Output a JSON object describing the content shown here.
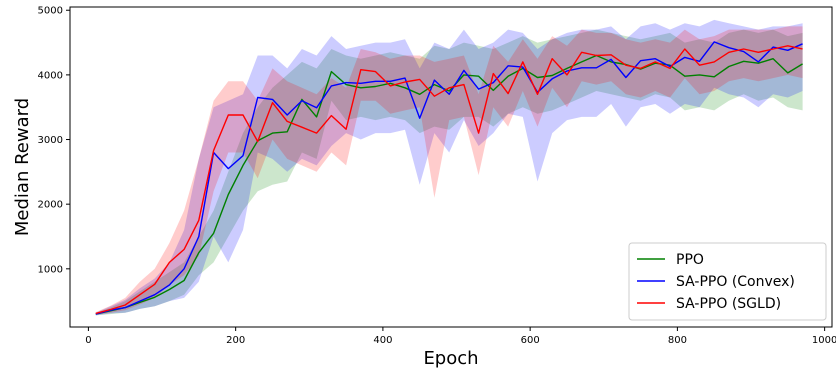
{
  "chart_data": {
    "type": "line",
    "title": "",
    "xlabel": "Epoch",
    "ylabel": "Median Reward",
    "xlim": [
      -25,
      1010
    ],
    "ylim": [
      100,
      5050
    ],
    "xticks": [
      0,
      200,
      400,
      600,
      800,
      1000
    ],
    "yticks": [
      1000,
      2000,
      3000,
      4000,
      5000
    ],
    "grid": false,
    "legend_position": "bottom-right",
    "x": [
      10,
      30,
      50,
      70,
      90,
      110,
      130,
      150,
      170,
      190,
      210,
      230,
      250,
      270,
      290,
      310,
      330,
      350,
      370,
      390,
      410,
      430,
      450,
      470,
      490,
      510,
      530,
      550,
      570,
      590,
      610,
      630,
      650,
      670,
      690,
      710,
      730,
      750,
      770,
      790,
      810,
      830,
      850,
      870,
      890,
      910,
      930,
      950,
      970
    ],
    "series": [
      {
        "name": "PPO",
        "color": "#008000",
        "values": [
          300,
          350,
          400,
          480,
          560,
          680,
          820,
          1250,
          1550,
          2150,
          2600,
          2980,
          3100,
          3120,
          3620,
          3350,
          4050,
          3850,
          3800,
          3820,
          3870,
          3800,
          3700,
          3850,
          3750,
          4000,
          3980,
          3760,
          3980,
          4100,
          3960,
          3990,
          4100,
          4200,
          4300,
          4200,
          4160,
          4090,
          4180,
          4150,
          3980,
          4000,
          3970,
          4130,
          4210,
          4180,
          4250,
          4030,
          4170
        ],
        "upper": [
          320,
          400,
          500,
          650,
          800,
          950,
          1100,
          1500,
          1900,
          2500,
          3100,
          3500,
          3800,
          4000,
          4200,
          4100,
          4400,
          4300,
          4250,
          4300,
          4350,
          4300,
          4250,
          4450,
          4400,
          4500,
          4450,
          4400,
          4500,
          4600,
          4500,
          4550,
          4600,
          4650,
          4700,
          4650,
          4600,
          4550,
          4600,
          4650,
          4500,
          4550,
          4500,
          4650,
          4700,
          4650,
          4700,
          4600,
          4650
        ],
        "lower": [
          280,
          300,
          320,
          380,
          420,
          500,
          600,
          900,
          1100,
          1500,
          1900,
          2200,
          2300,
          2350,
          2800,
          2700,
          3600,
          3300,
          3350,
          3300,
          3350,
          3300,
          3100,
          3200,
          3150,
          3350,
          3350,
          3200,
          3400,
          3500,
          3400,
          3450,
          3550,
          3650,
          3750,
          3700,
          3650,
          3600,
          3700,
          3650,
          3450,
          3500,
          3450,
          3600,
          3700,
          3600,
          3650,
          3500,
          3450
        ]
      },
      {
        "name": "SA-PPO (Convex)",
        "color": "#0000ff",
        "values": [
          300,
          360,
          400,
          500,
          600,
          750,
          1000,
          1500,
          2800,
          2550,
          2750,
          3650,
          3620,
          3380,
          3600,
          3490,
          3830,
          3880,
          3870,
          3900,
          3900,
          3950,
          3330,
          3920,
          3700,
          4070,
          3780,
          3880,
          4140,
          4120,
          3730,
          3940,
          4060,
          4110,
          4110,
          4240,
          3960,
          4220,
          4250,
          4130,
          4270,
          4210,
          4510,
          4420,
          4360,
          4200,
          4430,
          4380,
          4480
        ],
        "upper": [
          320,
          420,
          520,
          700,
          850,
          1100,
          1600,
          2700,
          3500,
          3600,
          3700,
          4300,
          4300,
          4100,
          4400,
          4300,
          4600,
          4400,
          4450,
          4500,
          4500,
          4550,
          4100,
          4500,
          4400,
          4700,
          4400,
          4500,
          4700,
          4650,
          4400,
          4550,
          4650,
          4700,
          4700,
          4750,
          4550,
          4750,
          4800,
          4700,
          4800,
          4750,
          4850,
          4800,
          4750,
          4700,
          4750,
          4750,
          4800
        ],
        "lower": [
          280,
          310,
          320,
          380,
          420,
          500,
          550,
          800,
          1500,
          1100,
          1600,
          2800,
          2700,
          2500,
          2700,
          2600,
          2900,
          3100,
          3000,
          3100,
          3100,
          3150,
          2300,
          3100,
          2800,
          3300,
          2900,
          3100,
          3400,
          3350,
          2350,
          3100,
          3300,
          3350,
          3350,
          3550,
          3200,
          3500,
          3550,
          3400,
          3550,
          3500,
          3800,
          3700,
          3650,
          3500,
          3700,
          3650,
          3750
        ]
      },
      {
        "name": "SA-PPO (SGLD)",
        "color": "#ff0000",
        "values": [
          310,
          370,
          440,
          600,
          760,
          1100,
          1300,
          1750,
          2830,
          3380,
          3380,
          2970,
          3570,
          3280,
          3190,
          3100,
          3370,
          3160,
          4080,
          4050,
          3830,
          3890,
          3930,
          3670,
          3800,
          3850,
          3100,
          4020,
          3710,
          4200,
          3700,
          4250,
          4000,
          4350,
          4300,
          4310,
          4150,
          4100,
          4200,
          4100,
          4400,
          4150,
          4200,
          4350,
          4400,
          4350,
          4400,
          4450,
          4400
        ],
        "upper": [
          330,
          430,
          550,
          800,
          1000,
          1400,
          1900,
          2700,
          3600,
          3900,
          3900,
          3600,
          4100,
          3900,
          3800,
          3700,
          3950,
          3800,
          4400,
          4350,
          4250,
          4300,
          4300,
          4200,
          4250,
          4300,
          3700,
          4450,
          4200,
          4550,
          4250,
          4600,
          4450,
          4700,
          4650,
          4650,
          4550,
          4500,
          4550,
          4500,
          4700,
          4550,
          4600,
          4700,
          4700,
          4700,
          4700,
          4750,
          4750
        ],
        "lower": [
          290,
          320,
          360,
          450,
          550,
          750,
          900,
          1200,
          2200,
          2800,
          2800,
          2400,
          3000,
          2700,
          2600,
          2500,
          2800,
          2600,
          3600,
          3600,
          3400,
          3450,
          3500,
          2100,
          3300,
          3350,
          2450,
          3500,
          3200,
          3750,
          3200,
          3800,
          3500,
          3900,
          3850,
          3900,
          3700,
          3650,
          3750,
          3650,
          3950,
          3700,
          3750,
          3900,
          3950,
          3900,
          3950,
          4000,
          3950
        ]
      }
    ]
  }
}
